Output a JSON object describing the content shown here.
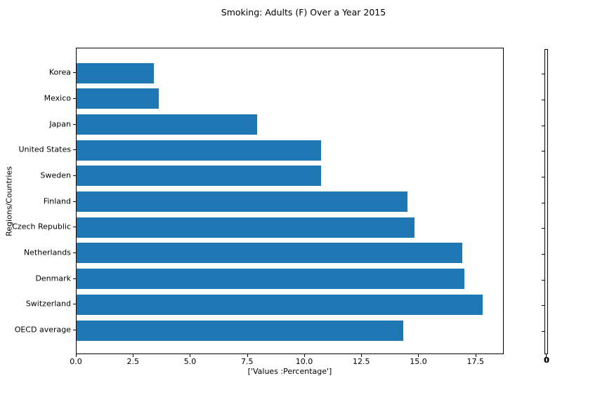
{
  "chart_data": {
    "type": "bar",
    "orientation": "horizontal",
    "title": "Smoking: Adults (F) Over a Year 2015",
    "xlabel": "['Values :Percentage']",
    "ylabel": "Regions/Countries",
    "categories": [
      "Korea",
      "Mexico",
      "Japan",
      "United States",
      "Sweden",
      "Finland",
      "Czech Republic",
      "Netherlands",
      "Denmark",
      "Switzerland",
      "OECD average"
    ],
    "values": [
      3.4,
      3.6,
      7.9,
      10.7,
      10.7,
      14.5,
      14.8,
      16.9,
      17.0,
      17.8,
      14.3
    ],
    "xlim": [
      0,
      18.74
    ],
    "xticks": [
      "0.0",
      "2.5",
      "5.0",
      "7.5",
      "10.0",
      "12.5",
      "15.0",
      "17.5"
    ],
    "bar_color": "#1f77b4",
    "grid": false,
    "legend_position": "none",
    "background_color": "#ffffff"
  },
  "mini_axis": {
    "tick_label": "0",
    "side_tick_count": 11
  }
}
